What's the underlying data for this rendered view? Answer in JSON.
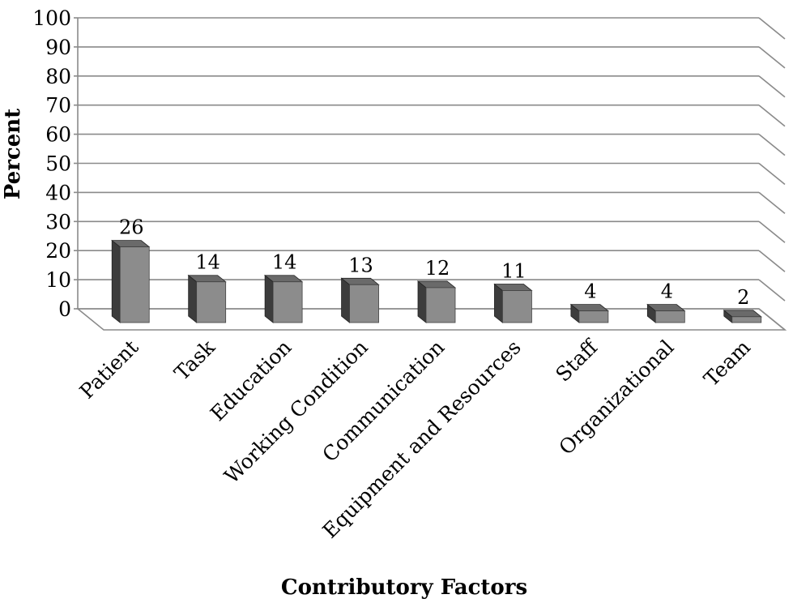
{
  "chart_data": {
    "type": "bar",
    "style": "3d-column",
    "title": "",
    "xlabel": "Contributory Factors",
    "ylabel": "Percent",
    "ylim": [
      0,
      100
    ],
    "yticks": [
      0,
      10,
      20,
      30,
      40,
      50,
      60,
      70,
      80,
      90,
      100
    ],
    "grid": true,
    "legend": "none",
    "categories": [
      "Patient",
      "Task",
      "Education",
      "Working Condition",
      "Communication",
      "Equipment and Resources",
      "Staff",
      "Organizational",
      "Team"
    ],
    "values": [
      26,
      14,
      14,
      13,
      12,
      11,
      4,
      4,
      2
    ],
    "data_labels": [
      "26",
      "14",
      "14",
      "13",
      "12",
      "11",
      "4",
      "4",
      "2"
    ],
    "colors": {
      "bar_front": "#8c8c8c",
      "bar_side": "#3c3c3c",
      "bar_top": "#6a6a6a",
      "gridline": "#8a8a8a"
    }
  }
}
